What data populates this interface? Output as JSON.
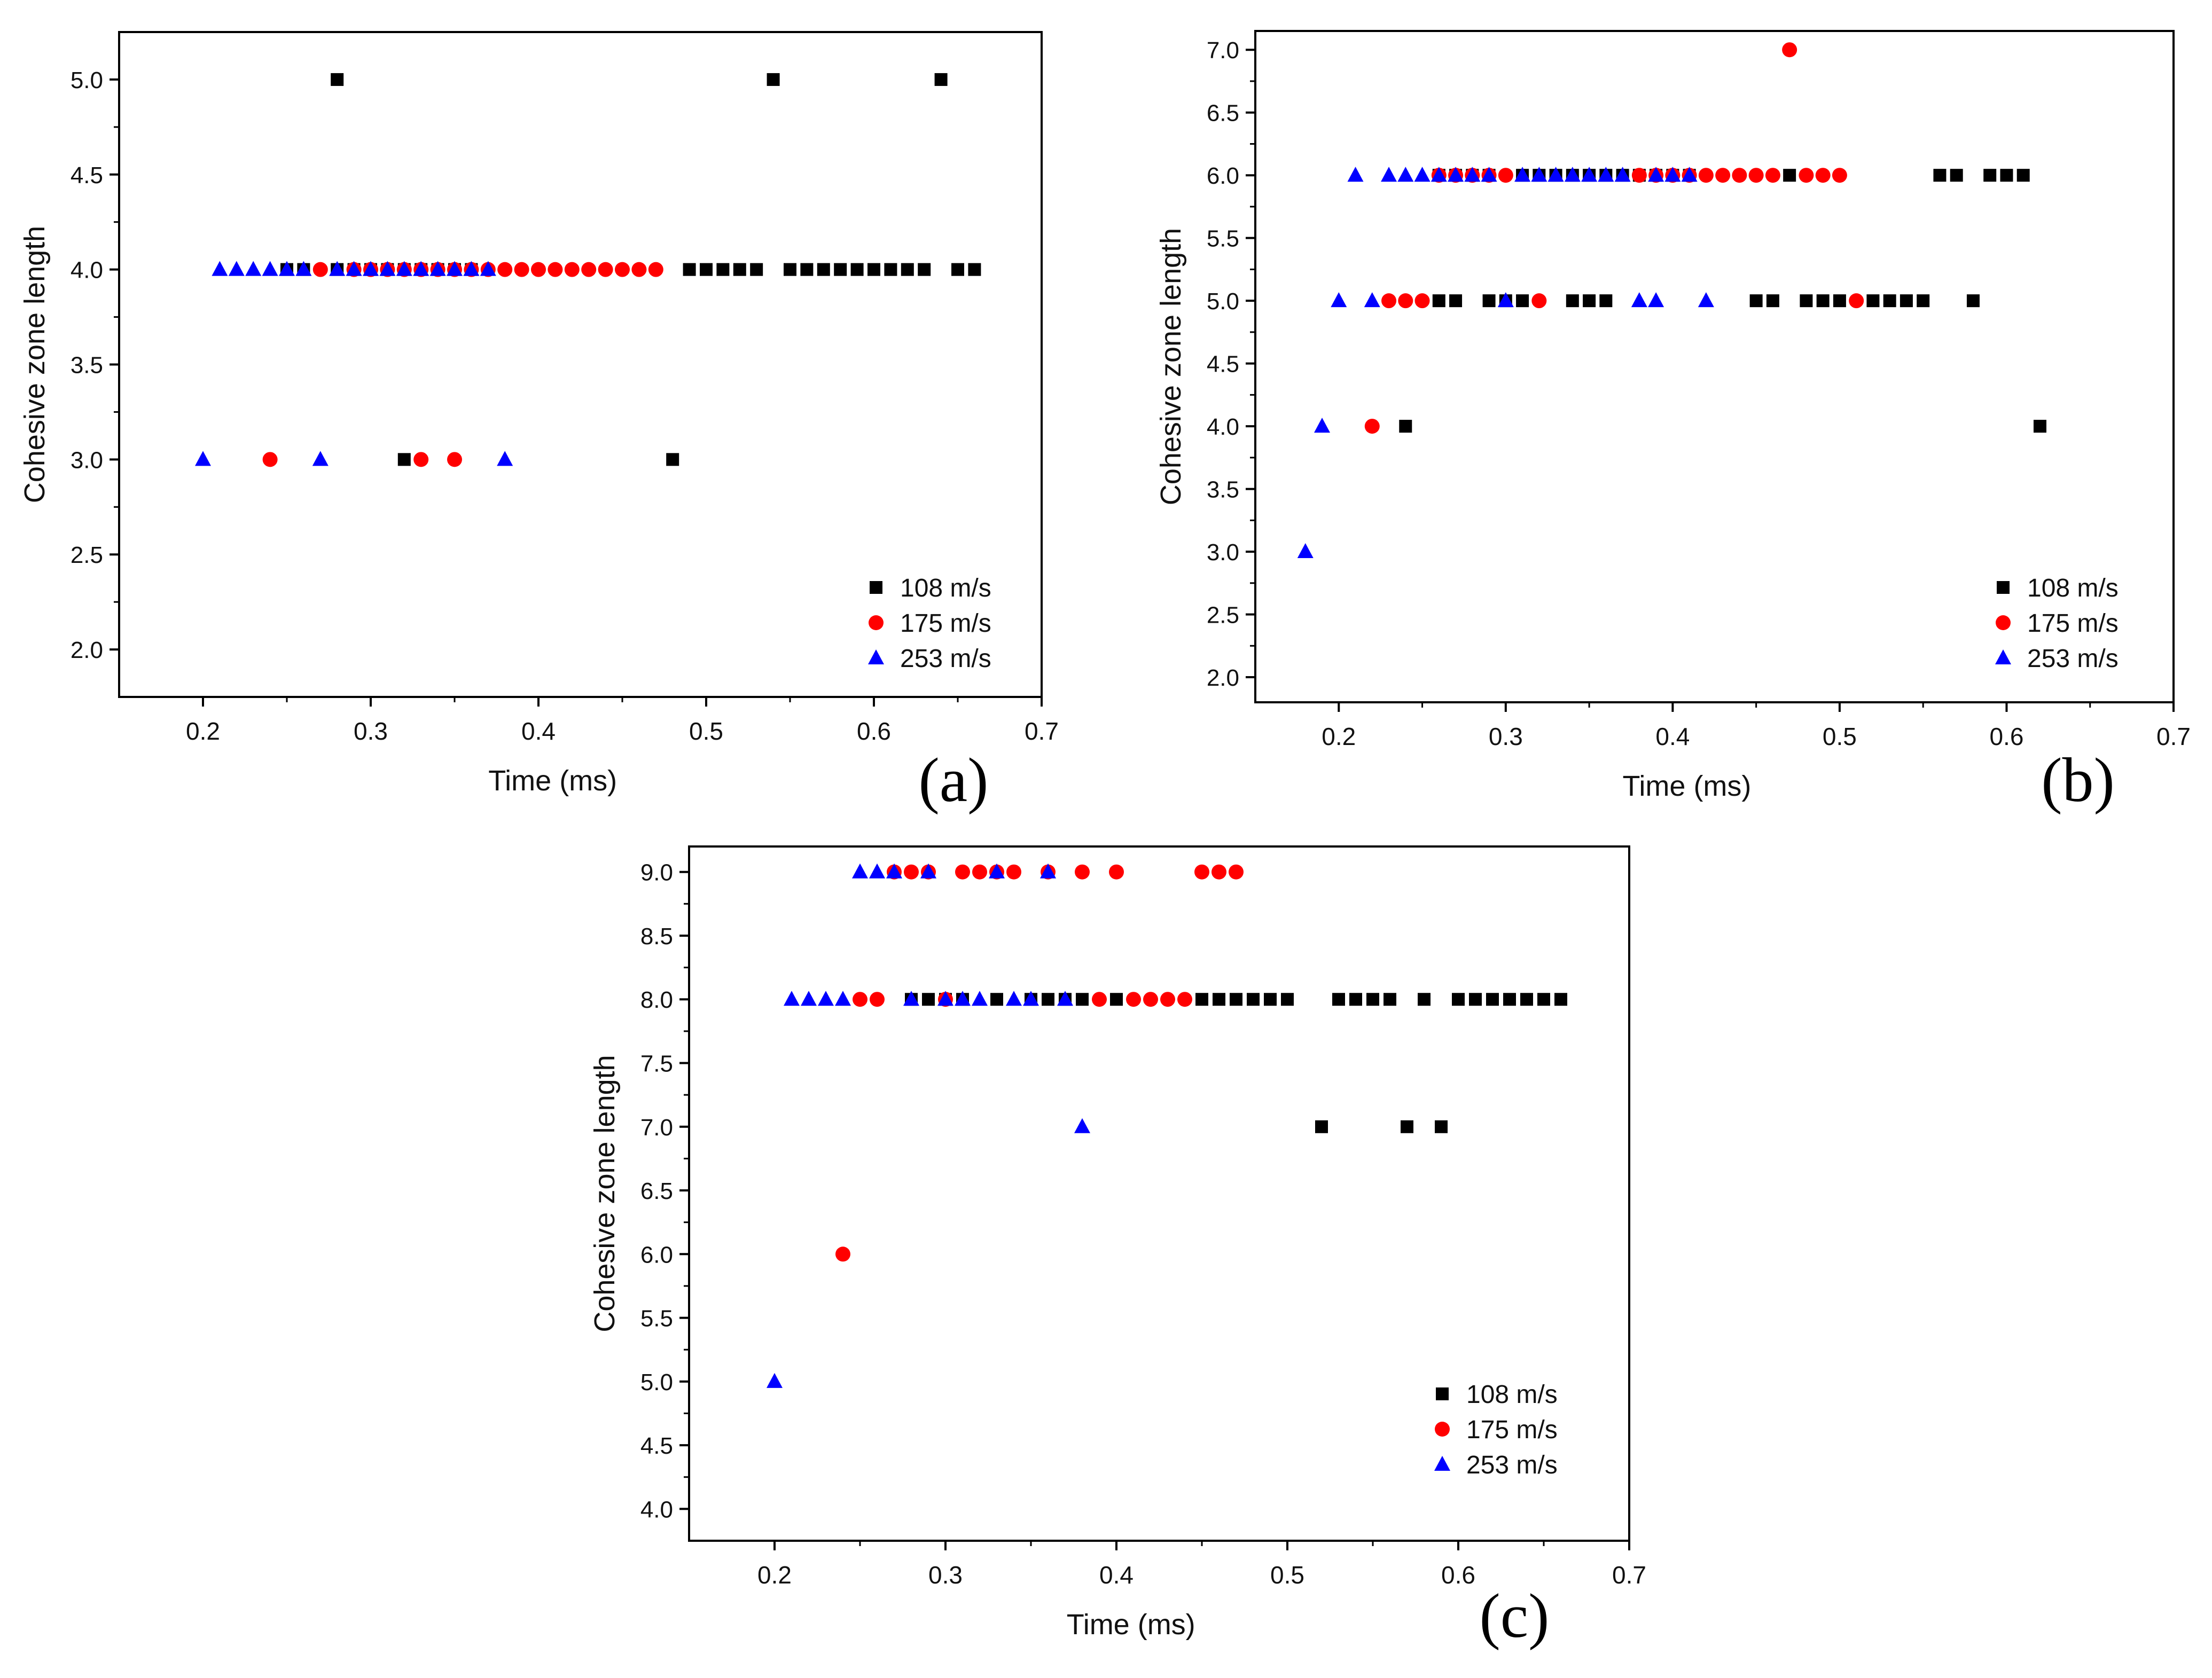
{
  "figure": {
    "panels": [
      "(a)",
      "(b)",
      "(c)"
    ]
  },
  "colors": {
    "v108": "#000000",
    "v175": "#ff0000",
    "v253": "#0000ff",
    "axis": "#000000"
  },
  "chart_data": [
    {
      "id": "a",
      "type": "scatter",
      "panel_label": "(a)",
      "xlabel": "Time (ms)",
      "ylabel": "Cohesive zone length",
      "xlim": [
        0.15,
        0.7
      ],
      "ylim": [
        1.75,
        5.25
      ],
      "xticks": [
        "0.2",
        "0.3",
        "0.4",
        "0.5",
        "0.6",
        "0.7"
      ],
      "yticks": [
        "2.0",
        "2.5",
        "3.0",
        "3.5",
        "4.0",
        "4.5",
        "5.0"
      ],
      "legend_position": "bottom-right",
      "series": [
        {
          "name": "108 m/s",
          "marker": "square",
          "color": "#000000",
          "points": [
            [
              0.28,
              5.0
            ],
            [
              0.54,
              5.0
            ],
            [
              0.64,
              5.0
            ],
            [
              0.25,
              4.0
            ],
            [
              0.26,
              4.0
            ],
            [
              0.28,
              4.0
            ],
            [
              0.29,
              4.0
            ],
            [
              0.3,
              4.0
            ],
            [
              0.31,
              4.0
            ],
            [
              0.32,
              4.0
            ],
            [
              0.33,
              4.0
            ],
            [
              0.34,
              4.0
            ],
            [
              0.35,
              4.0
            ],
            [
              0.36,
              4.0
            ],
            [
              0.49,
              4.0
            ],
            [
              0.5,
              4.0
            ],
            [
              0.51,
              4.0
            ],
            [
              0.52,
              4.0
            ],
            [
              0.53,
              4.0
            ],
            [
              0.55,
              4.0
            ],
            [
              0.56,
              4.0
            ],
            [
              0.57,
              4.0
            ],
            [
              0.58,
              4.0
            ],
            [
              0.59,
              4.0
            ],
            [
              0.6,
              4.0
            ],
            [
              0.61,
              4.0
            ],
            [
              0.62,
              4.0
            ],
            [
              0.63,
              4.0
            ],
            [
              0.65,
              4.0
            ],
            [
              0.66,
              4.0
            ],
            [
              0.32,
              3.0
            ],
            [
              0.48,
              3.0
            ]
          ]
        },
        {
          "name": "175 m/s",
          "marker": "circle",
          "color": "#ff0000",
          "points": [
            [
              0.27,
              4.0
            ],
            [
              0.29,
              4.0
            ],
            [
              0.3,
              4.0
            ],
            [
              0.31,
              4.0
            ],
            [
              0.32,
              4.0
            ],
            [
              0.33,
              4.0
            ],
            [
              0.34,
              4.0
            ],
            [
              0.35,
              4.0
            ],
            [
              0.36,
              4.0
            ],
            [
              0.37,
              4.0
            ],
            [
              0.38,
              4.0
            ],
            [
              0.39,
              4.0
            ],
            [
              0.4,
              4.0
            ],
            [
              0.41,
              4.0
            ],
            [
              0.42,
              4.0
            ],
            [
              0.43,
              4.0
            ],
            [
              0.44,
              4.0
            ],
            [
              0.45,
              4.0
            ],
            [
              0.46,
              4.0
            ],
            [
              0.47,
              4.0
            ],
            [
              0.24,
              3.0
            ],
            [
              0.33,
              3.0
            ],
            [
              0.35,
              3.0
            ]
          ]
        },
        {
          "name": "253 m/s",
          "marker": "triangle",
          "color": "#0000ff",
          "points": [
            [
              0.21,
              4.0
            ],
            [
              0.22,
              4.0
            ],
            [
              0.23,
              4.0
            ],
            [
              0.24,
              4.0
            ],
            [
              0.25,
              4.0
            ],
            [
              0.26,
              4.0
            ],
            [
              0.28,
              4.0
            ],
            [
              0.29,
              4.0
            ],
            [
              0.3,
              4.0
            ],
            [
              0.31,
              4.0
            ],
            [
              0.32,
              4.0
            ],
            [
              0.33,
              4.0
            ],
            [
              0.34,
              4.0
            ],
            [
              0.35,
              4.0
            ],
            [
              0.36,
              4.0
            ],
            [
              0.37,
              4.0
            ],
            [
              0.2,
              3.0
            ],
            [
              0.27,
              3.0
            ],
            [
              0.38,
              3.0
            ]
          ]
        }
      ]
    },
    {
      "id": "b",
      "type": "scatter",
      "panel_label": "(b)",
      "xlabel": "Time (ms)",
      "ylabel": "Cohesive zone length",
      "xlim": [
        0.15,
        0.7
      ],
      "ylim": [
        1.8,
        7.15
      ],
      "xticks": [
        "0.2",
        "0.3",
        "0.4",
        "0.5",
        "0.6",
        "0.7"
      ],
      "yticks": [
        "2.0",
        "2.5",
        "3.0",
        "3.5",
        "4.0",
        "4.5",
        "5.0",
        "5.5",
        "6.0",
        "6.5",
        "7.0"
      ],
      "legend_position": "bottom-right",
      "series": [
        {
          "name": "108 m/s",
          "marker": "square",
          "color": "#000000",
          "points": [
            [
              0.26,
              6.0
            ],
            [
              0.27,
              6.0
            ],
            [
              0.28,
              6.0
            ],
            [
              0.29,
              6.0
            ],
            [
              0.31,
              6.0
            ],
            [
              0.32,
              6.0
            ],
            [
              0.33,
              6.0
            ],
            [
              0.34,
              6.0
            ],
            [
              0.35,
              6.0
            ],
            [
              0.36,
              6.0
            ],
            [
              0.37,
              6.0
            ],
            [
              0.38,
              6.0
            ],
            [
              0.39,
              6.0
            ],
            [
              0.4,
              6.0
            ],
            [
              0.41,
              6.0
            ],
            [
              0.47,
              6.0
            ],
            [
              0.56,
              6.0
            ],
            [
              0.57,
              6.0
            ],
            [
              0.59,
              6.0
            ],
            [
              0.6,
              6.0
            ],
            [
              0.61,
              6.0
            ],
            [
              0.26,
              5.0
            ],
            [
              0.27,
              5.0
            ],
            [
              0.29,
              5.0
            ],
            [
              0.3,
              5.0
            ],
            [
              0.31,
              5.0
            ],
            [
              0.34,
              5.0
            ],
            [
              0.35,
              5.0
            ],
            [
              0.36,
              5.0
            ],
            [
              0.45,
              5.0
            ],
            [
              0.46,
              5.0
            ],
            [
              0.48,
              5.0
            ],
            [
              0.49,
              5.0
            ],
            [
              0.5,
              5.0
            ],
            [
              0.52,
              5.0
            ],
            [
              0.53,
              5.0
            ],
            [
              0.54,
              5.0
            ],
            [
              0.55,
              5.0
            ],
            [
              0.58,
              5.0
            ],
            [
              0.24,
              4.0
            ],
            [
              0.62,
              4.0
            ]
          ]
        },
        {
          "name": "175 m/s",
          "marker": "circle",
          "color": "#ff0000",
          "points": [
            [
              0.47,
              7.0
            ],
            [
              0.26,
              6.0
            ],
            [
              0.27,
              6.0
            ],
            [
              0.28,
              6.0
            ],
            [
              0.29,
              6.0
            ],
            [
              0.3,
              6.0
            ],
            [
              0.38,
              6.0
            ],
            [
              0.39,
              6.0
            ],
            [
              0.4,
              6.0
            ],
            [
              0.41,
              6.0
            ],
            [
              0.42,
              6.0
            ],
            [
              0.43,
              6.0
            ],
            [
              0.44,
              6.0
            ],
            [
              0.45,
              6.0
            ],
            [
              0.46,
              6.0
            ],
            [
              0.48,
              6.0
            ],
            [
              0.49,
              6.0
            ],
            [
              0.5,
              6.0
            ],
            [
              0.23,
              5.0
            ],
            [
              0.24,
              5.0
            ],
            [
              0.25,
              5.0
            ],
            [
              0.32,
              5.0
            ],
            [
              0.51,
              5.0
            ],
            [
              0.22,
              4.0
            ]
          ]
        },
        {
          "name": "253 m/s",
          "marker": "triangle",
          "color": "#0000ff",
          "points": [
            [
              0.21,
              6.0
            ],
            [
              0.23,
              6.0
            ],
            [
              0.24,
              6.0
            ],
            [
              0.25,
              6.0
            ],
            [
              0.26,
              6.0
            ],
            [
              0.27,
              6.0
            ],
            [
              0.28,
              6.0
            ],
            [
              0.29,
              6.0
            ],
            [
              0.31,
              6.0
            ],
            [
              0.32,
              6.0
            ],
            [
              0.33,
              6.0
            ],
            [
              0.34,
              6.0
            ],
            [
              0.35,
              6.0
            ],
            [
              0.36,
              6.0
            ],
            [
              0.37,
              6.0
            ],
            [
              0.39,
              6.0
            ],
            [
              0.4,
              6.0
            ],
            [
              0.41,
              6.0
            ],
            [
              0.2,
              5.0
            ],
            [
              0.22,
              5.0
            ],
            [
              0.3,
              5.0
            ],
            [
              0.38,
              5.0
            ],
            [
              0.39,
              5.0
            ],
            [
              0.42,
              5.0
            ],
            [
              0.19,
              4.0
            ],
            [
              0.18,
              3.0
            ]
          ]
        }
      ]
    },
    {
      "id": "c",
      "type": "scatter",
      "panel_label": "(c)",
      "xlabel": "Time (ms)",
      "ylabel": "Cohesive zone length",
      "xlim": [
        0.15,
        0.7
      ],
      "ylim": [
        3.75,
        9.2
      ],
      "xticks": [
        "0.2",
        "0.3",
        "0.4",
        "0.5",
        "0.6",
        "0.7"
      ],
      "yticks": [
        "4.0",
        "4.5",
        "5.0",
        "5.5",
        "6.0",
        "6.5",
        "7.0",
        "7.5",
        "8.0",
        "8.5",
        "9.0"
      ],
      "legend_position": "bottom-right",
      "series": [
        {
          "name": "108 m/s",
          "marker": "square",
          "color": "#000000",
          "points": [
            [
              0.28,
              8.0
            ],
            [
              0.29,
              8.0
            ],
            [
              0.3,
              8.0
            ],
            [
              0.31,
              8.0
            ],
            [
              0.33,
              8.0
            ],
            [
              0.35,
              8.0
            ],
            [
              0.36,
              8.0
            ],
            [
              0.37,
              8.0
            ],
            [
              0.38,
              8.0
            ],
            [
              0.4,
              8.0
            ],
            [
              0.45,
              8.0
            ],
            [
              0.46,
              8.0
            ],
            [
              0.47,
              8.0
            ],
            [
              0.48,
              8.0
            ],
            [
              0.49,
              8.0
            ],
            [
              0.5,
              8.0
            ],
            [
              0.53,
              8.0
            ],
            [
              0.54,
              8.0
            ],
            [
              0.55,
              8.0
            ],
            [
              0.56,
              8.0
            ],
            [
              0.58,
              8.0
            ],
            [
              0.6,
              8.0
            ],
            [
              0.61,
              8.0
            ],
            [
              0.62,
              8.0
            ],
            [
              0.63,
              8.0
            ],
            [
              0.64,
              8.0
            ],
            [
              0.65,
              8.0
            ],
            [
              0.66,
              8.0
            ],
            [
              0.52,
              7.0
            ],
            [
              0.57,
              7.0
            ],
            [
              0.59,
              7.0
            ]
          ]
        },
        {
          "name": "175 m/s",
          "marker": "circle",
          "color": "#ff0000",
          "points": [
            [
              0.27,
              9.0
            ],
            [
              0.28,
              9.0
            ],
            [
              0.29,
              9.0
            ],
            [
              0.31,
              9.0
            ],
            [
              0.32,
              9.0
            ],
            [
              0.33,
              9.0
            ],
            [
              0.34,
              9.0
            ],
            [
              0.36,
              9.0
            ],
            [
              0.38,
              9.0
            ],
            [
              0.4,
              9.0
            ],
            [
              0.45,
              9.0
            ],
            [
              0.46,
              9.0
            ],
            [
              0.47,
              9.0
            ],
            [
              0.25,
              8.0
            ],
            [
              0.26,
              8.0
            ],
            [
              0.3,
              8.0
            ],
            [
              0.39,
              8.0
            ],
            [
              0.41,
              8.0
            ],
            [
              0.42,
              8.0
            ],
            [
              0.43,
              8.0
            ],
            [
              0.44,
              8.0
            ],
            [
              0.24,
              6.0
            ]
          ]
        },
        {
          "name": "253 m/s",
          "marker": "triangle",
          "color": "#0000ff",
          "points": [
            [
              0.25,
              9.0
            ],
            [
              0.26,
              9.0
            ],
            [
              0.27,
              9.0
            ],
            [
              0.29,
              9.0
            ],
            [
              0.33,
              9.0
            ],
            [
              0.36,
              9.0
            ],
            [
              0.21,
              8.0
            ],
            [
              0.22,
              8.0
            ],
            [
              0.23,
              8.0
            ],
            [
              0.24,
              8.0
            ],
            [
              0.28,
              8.0
            ],
            [
              0.3,
              8.0
            ],
            [
              0.31,
              8.0
            ],
            [
              0.32,
              8.0
            ],
            [
              0.34,
              8.0
            ],
            [
              0.35,
              8.0
            ],
            [
              0.37,
              8.0
            ],
            [
              0.38,
              7.0
            ],
            [
              0.2,
              5.0
            ]
          ]
        }
      ]
    }
  ]
}
